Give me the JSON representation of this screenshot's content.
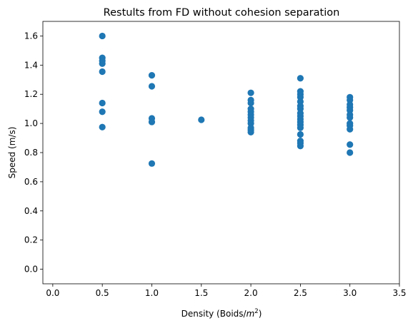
{
  "chart_data": {
    "type": "scatter",
    "title": "Restults from FD without cohesion separation",
    "xlabel_prefix": "Density (Boids/",
    "xlabel_unit_base": "m",
    "xlabel_unit_exp": "2",
    "xlabel_suffix": ")",
    "ylabel": "Speed (m/s)",
    "xlim": [
      -0.1,
      3.5
    ],
    "ylim": [
      -0.1,
      1.7
    ],
    "grid": false,
    "marker_color": "#1f77b4",
    "x_ticks": [
      0.0,
      0.5,
      1.0,
      1.5,
      2.0,
      2.5,
      3.0,
      3.5
    ],
    "x_tick_labels": [
      "0.0",
      "0.5",
      "1.0",
      "1.5",
      "2.0",
      "2.5",
      "3.0",
      "3.5"
    ],
    "y_ticks": [
      0.0,
      0.2,
      0.4,
      0.6,
      0.8,
      1.0,
      1.2,
      1.4,
      1.6
    ],
    "y_tick_labels": [
      "0.0",
      "0.2",
      "0.4",
      "0.6",
      "0.8",
      "1.0",
      "1.2",
      "1.4",
      "1.6"
    ],
    "points": [
      {
        "x": 0.5,
        "y": 1.6
      },
      {
        "x": 0.5,
        "y": 1.45
      },
      {
        "x": 0.5,
        "y": 1.43
      },
      {
        "x": 0.5,
        "y": 1.41
      },
      {
        "x": 0.5,
        "y": 1.355
      },
      {
        "x": 0.5,
        "y": 1.14
      },
      {
        "x": 0.5,
        "y": 1.08
      },
      {
        "x": 0.5,
        "y": 0.975
      },
      {
        "x": 1.0,
        "y": 1.33
      },
      {
        "x": 1.0,
        "y": 1.255
      },
      {
        "x": 1.0,
        "y": 1.035
      },
      {
        "x": 1.0,
        "y": 1.01
      },
      {
        "x": 1.0,
        "y": 0.725
      },
      {
        "x": 1.5,
        "y": 1.025
      },
      {
        "x": 2.0,
        "y": 1.21
      },
      {
        "x": 2.0,
        "y": 1.16
      },
      {
        "x": 2.0,
        "y": 1.14
      },
      {
        "x": 2.0,
        "y": 1.1
      },
      {
        "x": 2.0,
        "y": 1.08
      },
      {
        "x": 2.0,
        "y": 1.06
      },
      {
        "x": 2.0,
        "y": 1.04
      },
      {
        "x": 2.0,
        "y": 1.02
      },
      {
        "x": 2.0,
        "y": 1.0
      },
      {
        "x": 2.0,
        "y": 0.97
      },
      {
        "x": 2.0,
        "y": 0.955
      },
      {
        "x": 2.0,
        "y": 0.94
      },
      {
        "x": 2.5,
        "y": 1.31
      },
      {
        "x": 2.5,
        "y": 1.22
      },
      {
        "x": 2.5,
        "y": 1.2
      },
      {
        "x": 2.5,
        "y": 1.18
      },
      {
        "x": 2.5,
        "y": 1.15
      },
      {
        "x": 2.5,
        "y": 1.12
      },
      {
        "x": 2.5,
        "y": 1.1
      },
      {
        "x": 2.5,
        "y": 1.07
      },
      {
        "x": 2.5,
        "y": 1.05
      },
      {
        "x": 2.5,
        "y": 1.03
      },
      {
        "x": 2.5,
        "y": 1.01
      },
      {
        "x": 2.5,
        "y": 0.99
      },
      {
        "x": 2.5,
        "y": 0.97
      },
      {
        "x": 2.5,
        "y": 0.925
      },
      {
        "x": 2.5,
        "y": 0.88
      },
      {
        "x": 2.5,
        "y": 0.865
      },
      {
        "x": 2.5,
        "y": 0.845
      },
      {
        "x": 3.0,
        "y": 1.18
      },
      {
        "x": 3.0,
        "y": 1.16
      },
      {
        "x": 3.0,
        "y": 1.13
      },
      {
        "x": 3.0,
        "y": 1.11
      },
      {
        "x": 3.0,
        "y": 1.09
      },
      {
        "x": 3.0,
        "y": 1.06
      },
      {
        "x": 3.0,
        "y": 1.04
      },
      {
        "x": 3.0,
        "y": 1.0
      },
      {
        "x": 3.0,
        "y": 0.985
      },
      {
        "x": 3.0,
        "y": 0.96
      },
      {
        "x": 3.0,
        "y": 0.855
      },
      {
        "x": 3.0,
        "y": 0.8
      }
    ]
  }
}
